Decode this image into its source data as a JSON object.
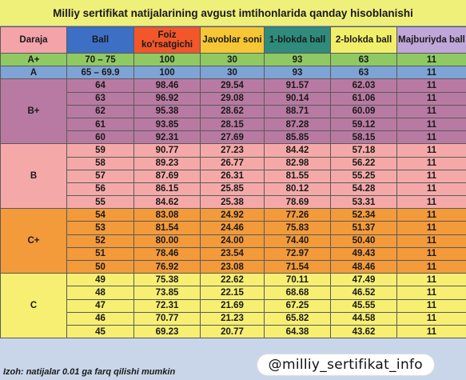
{
  "title": "Milliy sertifikat natijalarining avgust imtihonlarida qanday hisoblanishi",
  "table": {
    "headers": [
      {
        "label": "Daraja",
        "bg": "#f4a3a8"
      },
      {
        "label": "Ball",
        "bg": "#3d6fc4"
      },
      {
        "label": "Foiz ko'rsatgichi",
        "bg": "#f2562a"
      },
      {
        "label": "Javoblar soni",
        "bg": "#f7c634"
      },
      {
        "label": "1-blokda ball",
        "bg": "#2f8c7c"
      },
      {
        "label": "2-blokda ball",
        "bg": "#f1ef6a"
      },
      {
        "label": "Majburiyda ball",
        "bg": "#bfa7d9"
      }
    ],
    "groups": [
      {
        "grade": "A+",
        "bg": "#8fc964",
        "rows": [
          [
            "70 – 75",
            "100",
            "30",
            "93",
            "63",
            "11"
          ]
        ]
      },
      {
        "grade": "A",
        "bg": "#7ea4d6",
        "rows": [
          [
            "65 – 69.9",
            "100",
            "30",
            "93",
            "63",
            "11"
          ]
        ]
      },
      {
        "grade": "B+",
        "bg": "#b87aa2",
        "rows": [
          [
            "64",
            "98.46",
            "29.54",
            "91.57",
            "62.03",
            "11"
          ],
          [
            "63",
            "96.92",
            "29.08",
            "90.14",
            "61.06",
            "11"
          ],
          [
            "62",
            "95.38",
            "28.62",
            "88.71",
            "60.09",
            "11"
          ],
          [
            "61",
            "93.85",
            "28.15",
            "87.28",
            "59.12",
            "11"
          ],
          [
            "60",
            "92.31",
            "27.69",
            "85.85",
            "58.15",
            "11"
          ]
        ]
      },
      {
        "grade": "B",
        "bg": "#f4a9a8",
        "rows": [
          [
            "59",
            "90.77",
            "27.23",
            "84.42",
            "57.18",
            "11"
          ],
          [
            "58",
            "89.23",
            "26.77",
            "82.98",
            "56.22",
            "11"
          ],
          [
            "57",
            "87.69",
            "26.31",
            "81.55",
            "55.25",
            "11"
          ],
          [
            "56",
            "86.15",
            "25.85",
            "80.12",
            "54.28",
            "11"
          ],
          [
            "55",
            "84.62",
            "25.38",
            "78.69",
            "53.31",
            "11"
          ]
        ]
      },
      {
        "grade": "C+",
        "bg": "#f39a3b",
        "rows": [
          [
            "54",
            "83.08",
            "24.92",
            "77.26",
            "52.34",
            "11"
          ],
          [
            "53",
            "81.54",
            "24.46",
            "75.83",
            "51.37",
            "11"
          ],
          [
            "52",
            "80.00",
            "24.00",
            "74.40",
            "50.40",
            "11"
          ],
          [
            "51",
            "78.46",
            "23.54",
            "72.97",
            "49.43",
            "11"
          ],
          [
            "50",
            "76.92",
            "23.08",
            "71.54",
            "48.46",
            "11"
          ]
        ]
      },
      {
        "grade": "C",
        "bg": "#f6ef72",
        "rows": [
          [
            "49",
            "75.38",
            "22.62",
            "70.11",
            "47.49",
            "11"
          ],
          [
            "48",
            "73.85",
            "22.15",
            "68.68",
            "46.52",
            "11"
          ],
          [
            "47",
            "72.31",
            "21.69",
            "67.25",
            "45.55",
            "11"
          ],
          [
            "46",
            "70.77",
            "21.23",
            "65.82",
            "44.58",
            "11"
          ],
          [
            "45",
            "69.23",
            "20.77",
            "64.38",
            "43.62",
            "11"
          ]
        ]
      }
    ]
  },
  "footer": {
    "note": "Izoh: natijalar 0.01 ga farq qilishi mumkin",
    "handle": "@milliy_sertifikat_info"
  }
}
